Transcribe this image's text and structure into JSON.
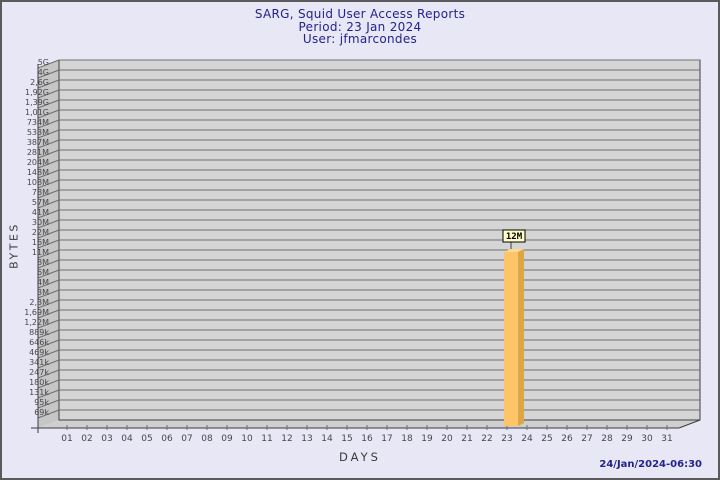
{
  "header": {
    "title": "SARG, Squid User Access Reports",
    "period": "Period: 23 Jan 2024",
    "user": "User: jfmarcondes"
  },
  "footer": {
    "generated": "24/Jan/2024-06:30"
  },
  "chart_data": {
    "type": "bar",
    "title": "SARG, Squid User Access Reports",
    "subtitle_period": "Period: 23 Jan 2024",
    "subtitle_user": "User: jfmarcondes",
    "xlabel": "DAYS",
    "ylabel": "BYTES",
    "y_scale": "log",
    "unit": "bytes",
    "y_tick_labels": [
      "5G",
      "4G",
      "2,6G",
      "1,92G",
      "1,39G",
      "1,01G",
      "734M",
      "533M",
      "387M",
      "281M",
      "204M",
      "148M",
      "108M",
      "78M",
      "57M",
      "41M",
      "30M",
      "22M",
      "16M",
      "11M",
      "8M",
      "6M",
      "4M",
      "3M",
      "2,3M",
      "1,69M",
      "1,22M",
      "889k",
      "646k",
      "469k",
      "341k",
      "247k",
      "180k",
      "131k",
      "95k",
      "69k"
    ],
    "categories": [
      "01",
      "02",
      "03",
      "04",
      "05",
      "06",
      "07",
      "08",
      "09",
      "10",
      "11",
      "12",
      "13",
      "14",
      "15",
      "16",
      "17",
      "18",
      "19",
      "20",
      "21",
      "22",
      "23",
      "24",
      "25",
      "26",
      "27",
      "28",
      "29",
      "30",
      "31"
    ],
    "values": [
      0,
      0,
      0,
      0,
      0,
      0,
      0,
      0,
      0,
      0,
      0,
      0,
      0,
      0,
      0,
      0,
      0,
      0,
      0,
      0,
      0,
      0,
      12000000,
      0,
      0,
      0,
      0,
      0,
      0,
      0,
      0
    ],
    "bars": [
      {
        "category": "23",
        "label": "12M",
        "value_bytes": 12000000
      }
    ],
    "legend": null,
    "grid": "horizontal"
  },
  "colors": {
    "background": "#e7e7f6",
    "plot_face": "#d5d5d5",
    "wall": "#c6c6c6",
    "floor": "#cfcfcf",
    "grid_line": "#6f6f6f",
    "edge": "#3e3e3e",
    "title_text": "#23238c",
    "axis_text": "#474747",
    "bar_face": "#fdc468",
    "bar_side": "#dca647",
    "bar_top": "#ffd98f",
    "annotation_bg": "#ffffc8",
    "annotation_border": "#000000",
    "timestamp_text": "#23238c"
  }
}
